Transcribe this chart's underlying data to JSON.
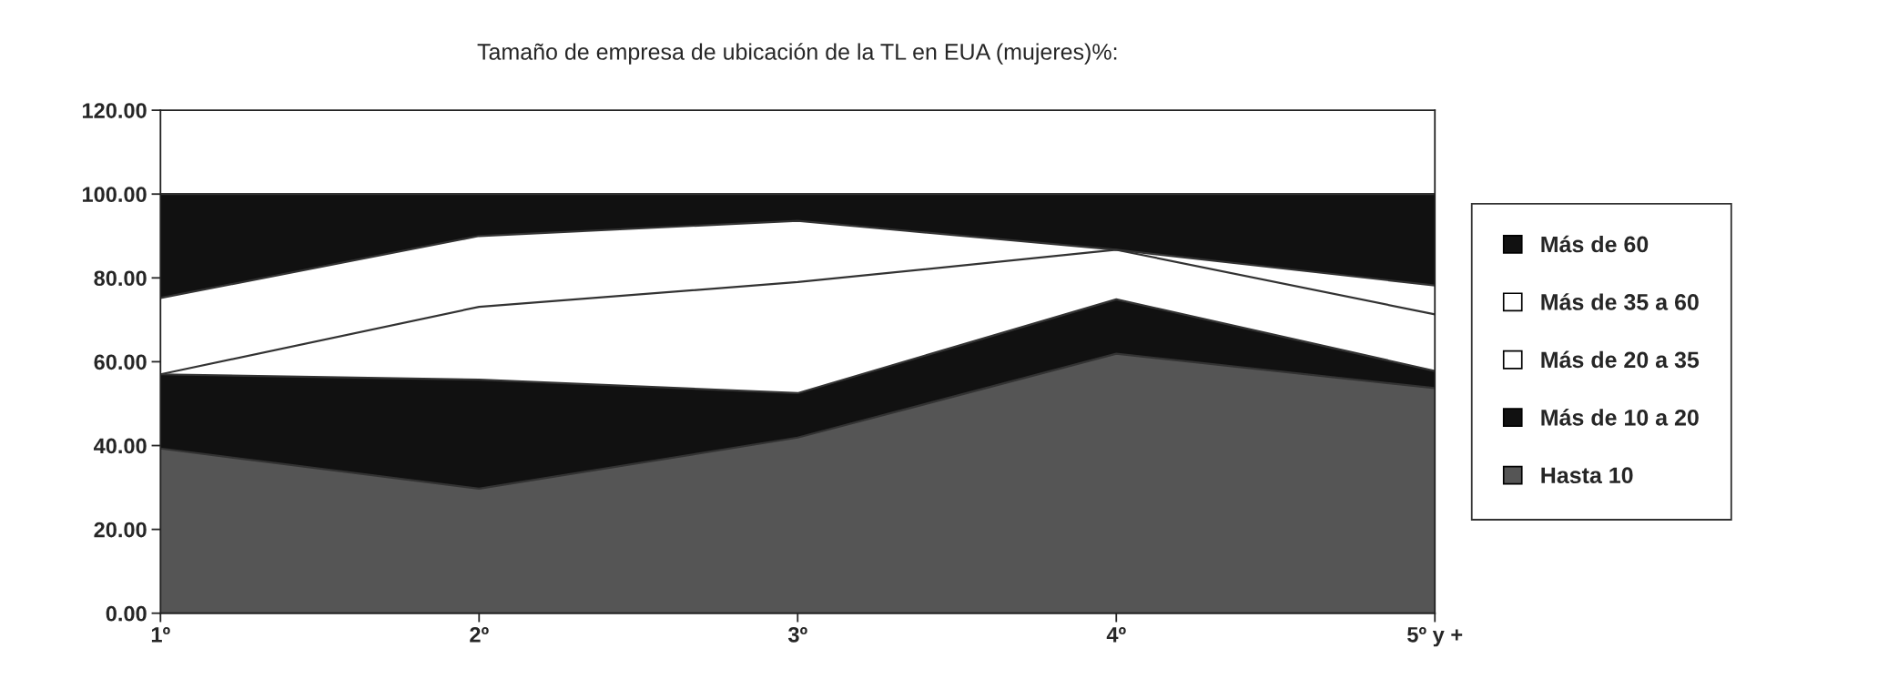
{
  "chart_data": {
    "type": "area",
    "stacked": true,
    "title": "Tamaño de empresa de ubicación de la TL en EUA (mujeres)%:",
    "categories": [
      "1º",
      "2º",
      "3º",
      "4º",
      "5º y +"
    ],
    "series": [
      {
        "name": "Hasta 10",
        "color": "#555555",
        "values": [
          39.3,
          29.7,
          41.9,
          61.9,
          53.7
        ]
      },
      {
        "name": "Más de 10 a 20",
        "color": "#111111",
        "values": [
          17.7,
          26.0,
          10.6,
          13.0,
          4.1
        ]
      },
      {
        "name": "Más de 20 a 35",
        "color": "#ffffff",
        "values": [
          0.0,
          17.4,
          26.5,
          11.8,
          13.5
        ]
      },
      {
        "name": "Más de 35 a 60",
        "color": "#ffffff",
        "values": [
          18.2,
          16.9,
          14.6,
          0.0,
          6.9
        ]
      },
      {
        "name": "Más de 60",
        "color": "#111111",
        "values": [
          24.8,
          10.0,
          6.4,
          13.3,
          21.8
        ]
      }
    ],
    "ylim": [
      0,
      120
    ],
    "yticks": [
      {
        "value": 0,
        "label": "0.00"
      },
      {
        "value": 20,
        "label": "20.00"
      },
      {
        "value": 40,
        "label": "40.00"
      },
      {
        "value": 60,
        "label": "60.00"
      },
      {
        "value": 80,
        "label": "80.00"
      },
      {
        "value": 100,
        "label": "100.00"
      },
      {
        "value": 120,
        "label": "120.00"
      }
    ],
    "grid": false,
    "legend": "right"
  }
}
